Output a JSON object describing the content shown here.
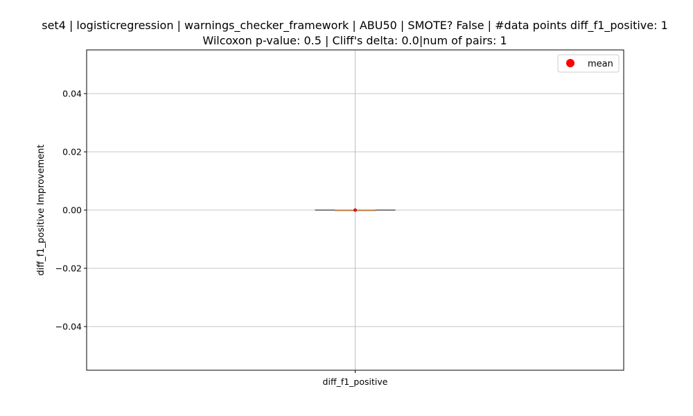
{
  "chart_data": {
    "type": "box",
    "title": "set4 | logisticregression | warnings_checker_framework | ABU50 | SMOTE? False | #data points diff_f1_positive: 1",
    "subtitle": "Wilcoxon p-value: 0.5 | Cliff's delta: 0.0|num of pairs: 1",
    "ylabel": "diff_f1_positive Improvement",
    "xlabel": "",
    "categories": [
      "diff_f1_positive"
    ],
    "box": {
      "min": 0.0,
      "q1": 0.0,
      "median": 0.0,
      "q3": 0.0,
      "max": 0.0,
      "mean": 0.0
    },
    "ylim": [
      -0.055,
      0.055
    ],
    "yticks": [
      -0.04,
      -0.02,
      0.0,
      0.02,
      0.04
    ],
    "ytick_labels": [
      "−0.04",
      "−0.02",
      "0.00",
      "0.02",
      "0.04"
    ],
    "legend": {
      "label": "mean",
      "placement": "top-right"
    },
    "grid": true,
    "colors": {
      "box": "#1f77b4",
      "median": "#ff7f0e",
      "mean": "#ff0000",
      "grid": "#b0b0b0"
    }
  }
}
